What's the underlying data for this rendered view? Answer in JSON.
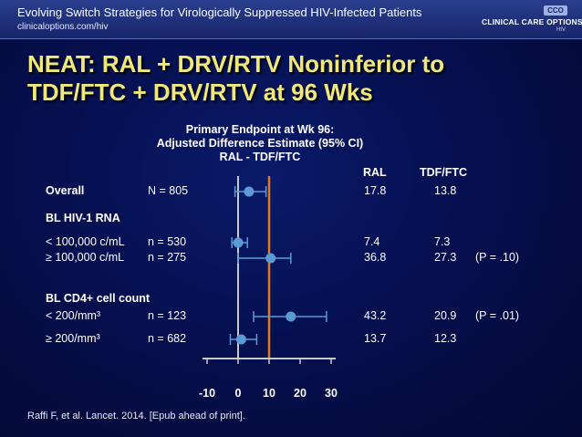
{
  "header": {
    "title": "Evolving Switch Strategies for Virologically Suppressed HIV-Infected Patients",
    "url": "clinicaloptions.com/hiv",
    "logo_badge": "CCO",
    "logo_text": "CLINICAL CARE OPTIONS",
    "logo_sub": "HIV"
  },
  "slide": {
    "title_line1": "NEAT: RAL + DRV/RTV Noninferior to",
    "title_line2": "TDF/FTC + DRV/RTV at 96 Wks",
    "citation": "Raffi F, et al. Lancet. 2014. [Epub ahead of print]."
  },
  "chart_data": {
    "type": "forest",
    "title_line1": "Primary Endpoint at Wk 96:",
    "title_line2": "Adjusted Difference Estimate (95% CI)",
    "title_line3": "RAL - TDF/FTC",
    "xlim": [
      -10,
      30
    ],
    "xticks": [
      "-10",
      "0",
      "10",
      "20",
      "30"
    ],
    "reference_line": 10,
    "column_headers": {
      "ral": "RAL",
      "tdf": "TDF/FTC"
    },
    "sections": [
      {
        "label": "Overall",
        "n": "N = 805",
        "point": 3.5,
        "lo": -1,
        "hi": 9,
        "ral": "17.8",
        "tdf": "13.8",
        "p": ""
      },
      {
        "label": "BL HIV-1 RNA",
        "header": true
      },
      {
        "label": "< 100,000 c/mL",
        "n": "n = 530",
        "point": 0,
        "lo": -2,
        "hi": 3,
        "ral": "7.4",
        "tdf": "7.3",
        "p": ""
      },
      {
        "label": "≥ 100,000 c/mL",
        "n": "n = 275",
        "point": 10.5,
        "lo": 0,
        "hi": 17,
        "ral": "36.8",
        "tdf": "27.3",
        "p": "(P = .10)"
      },
      {
        "label": "BL CD4+ cell count",
        "header": true
      },
      {
        "label": "< 200/mm³",
        "n": "n = 123",
        "point": 17,
        "lo": 5,
        "hi": 28.5,
        "ral": "43.2",
        "tdf": "20.9",
        "p": "(P = .01)"
      },
      {
        "label": "≥ 200/mm³",
        "n": "n = 682",
        "point": 1,
        "lo": -2.5,
        "hi": 6,
        "ral": "13.7",
        "tdf": "12.3",
        "p": ""
      }
    ],
    "colors": {
      "ci": "#5b9bd5",
      "point": "#5b9bd5",
      "reference": "#e07a1f",
      "axis": "#c8c8c8"
    }
  }
}
